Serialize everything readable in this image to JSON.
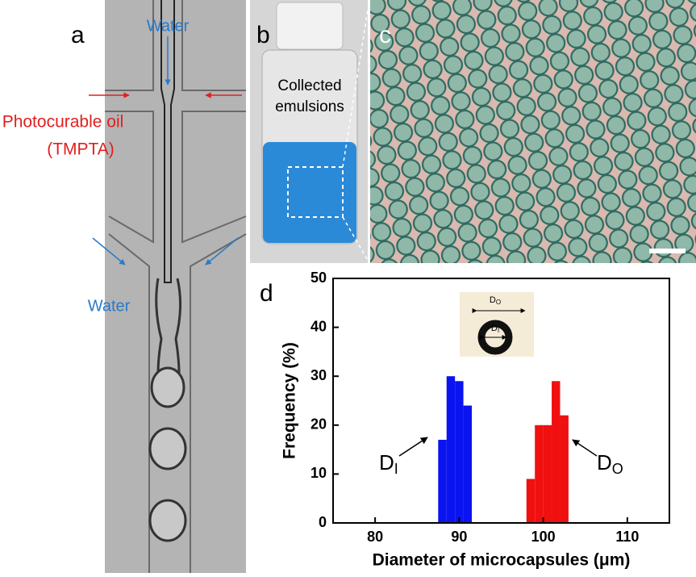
{
  "panels": {
    "a": {
      "label": "a",
      "top_inlet": "Water",
      "oil_inlet": [
        "Photocurable oil",
        "(TMPTA)"
      ],
      "side_inlet": "Water"
    },
    "b": {
      "label": "b",
      "caption": [
        "Collected",
        "emulsions"
      ]
    },
    "c": {
      "label": "c"
    },
    "d": {
      "label": "d"
    }
  },
  "chart_data": {
    "type": "histogram",
    "ylabel": "Frequency (%)",
    "xlabel": "Diameter of microcapsules (μm)",
    "xlim": [
      75,
      115
    ],
    "xticks": [
      80,
      90,
      100,
      110
    ],
    "ylim": [
      0,
      50
    ],
    "yticks": [
      0,
      10,
      20,
      30,
      40,
      50
    ],
    "series": [
      {
        "color": "#0a14f0",
        "bins": [
          87.5,
          88.5,
          89.5,
          90.5,
          91.5
        ],
        "values": [
          17,
          30,
          29,
          24
        ]
      },
      {
        "color": "#f01010",
        "bins": [
          98,
          99,
          100,
          101,
          102,
          103
        ],
        "values": [
          9,
          20,
          20,
          29,
          22
        ]
      }
    ],
    "annotations": [
      {
        "text": "D",
        "subscript": "I"
      },
      {
        "text": "D",
        "subscript": "O"
      }
    ],
    "inset": {
      "outer": {
        "text": "D",
        "subscript": "O"
      },
      "inner": {
        "text": "D",
        "subscript": "I"
      }
    }
  }
}
